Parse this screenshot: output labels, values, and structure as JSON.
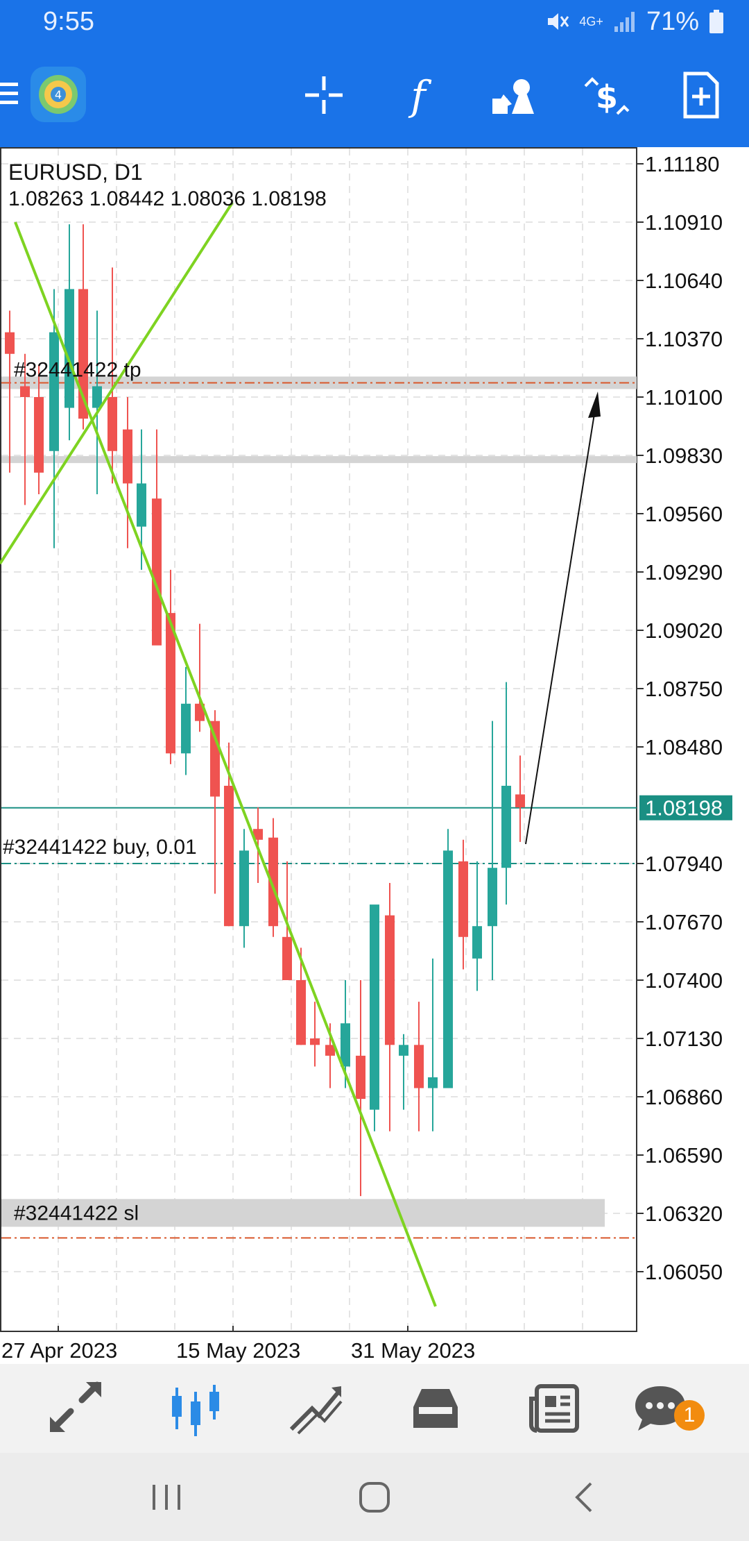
{
  "status_bar": {
    "time": "9:55",
    "network": "4G+",
    "battery": "71%",
    "icons": [
      "mute-icon",
      "signal-icon",
      "battery-icon"
    ]
  },
  "app_bar": {
    "icons": [
      "menu-icon",
      "metatrader-logo",
      "crosshair-icon",
      "indicators-icon",
      "objects-icon",
      "trade-icon",
      "new-order-icon"
    ]
  },
  "chart": {
    "symbol_timeframe": "EURUSD, D1",
    "ohlc": "1.08263 1.08442 1.08036 1.08198",
    "current_price": "1.08198",
    "price_axis": [
      "1.11180",
      "1.10910",
      "1.10640",
      "1.10370",
      "1.10100",
      "1.09830",
      "1.09560",
      "1.09290",
      "1.09020",
      "1.08750",
      "1.08480",
      "1.07940",
      "1.07670",
      "1.07400",
      "1.07130",
      "1.06860",
      "1.06590",
      "1.06320",
      "1.06050"
    ],
    "date_axis": [
      "27 Apr 2023",
      "15 May 2023",
      "31 May 2023"
    ],
    "orders": {
      "tp_label": "#32441422 tp",
      "buy_label": "#32441422 buy, 0.01",
      "sl_label": "#32441422 sl",
      "tp_price": 1.1015,
      "buy_price": 1.0794,
      "sl_price": 1.062
    },
    "colors": {
      "bull": "#26a69a",
      "bear": "#ef5350",
      "trendline": "#7ed321",
      "price_line": "#1a8f83",
      "order_line": "#d9572b"
    }
  },
  "bottom_nav": {
    "items": [
      "quotes-icon",
      "chart-icon",
      "trade-icon",
      "history-icon",
      "news-icon",
      "messages-icon"
    ],
    "active": "chart-icon",
    "messages_badge": "1"
  },
  "system_nav": {
    "buttons": [
      "recents-button",
      "home-button",
      "back-button"
    ]
  }
}
